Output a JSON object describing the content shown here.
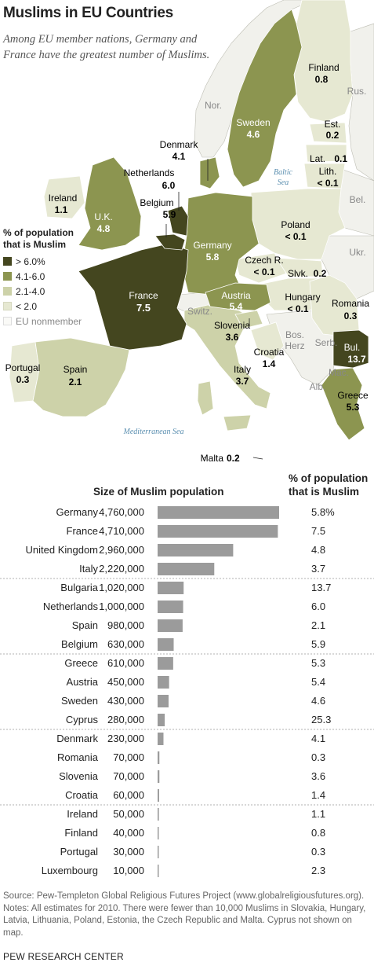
{
  "title": "Muslims in EU Countries",
  "subtitle": "Among EU member nations, Germany and France have the greatest number of Muslims.",
  "colors": {
    "dark": "#44461f",
    "medium": "#8c9550",
    "light": "#cdd2a9",
    "pale": "#e6e8d2",
    "nonmember": "#f3f3ee",
    "bar": "#9b9b9b"
  },
  "legend": {
    "title_line1": "% of population",
    "title_line2": "that is Muslim",
    "items": [
      "> 6.0%",
      "4.1-6.0",
      "2.1-4.0",
      "< 2.0",
      "EU nonmember"
    ]
  },
  "map_labels": [
    {
      "name": "Finland",
      "value": "0.8"
    },
    {
      "name": "Sweden",
      "value": "4.6"
    },
    {
      "name": "Est.",
      "value": "0.2"
    },
    {
      "name": "Lat.",
      "value": "0.1"
    },
    {
      "name": "Lith.",
      "value": "< 0.1"
    },
    {
      "name": "Denmark",
      "value": "4.1"
    },
    {
      "name": "Netherlands",
      "value": "6.0"
    },
    {
      "name": "Belgium",
      "value": "5.9"
    },
    {
      "name": "Ireland",
      "value": "1.1"
    },
    {
      "name": "U.K.",
      "value": "4.8"
    },
    {
      "name": "Germany",
      "value": "5.8"
    },
    {
      "name": "Poland",
      "value": "< 0.1"
    },
    {
      "name": "Czech R.",
      "value": "< 0.1"
    },
    {
      "name": "Slvk.",
      "value": "0.2"
    },
    {
      "name": "France",
      "value": "7.5"
    },
    {
      "name": "Austria",
      "value": "5.4"
    },
    {
      "name": "Hungary",
      "value": "< 0.1"
    },
    {
      "name": "Romania",
      "value": "0.3"
    },
    {
      "name": "Slovenia",
      "value": "3.6"
    },
    {
      "name": "Croatia",
      "value": "1.4"
    },
    {
      "name": "Bul.",
      "value": "13.7"
    },
    {
      "name": "Portugal",
      "value": "0.3"
    },
    {
      "name": "Spain",
      "value": "2.1"
    },
    {
      "name": "Italy",
      "value": "3.7"
    },
    {
      "name": "Greece",
      "value": "5.3"
    },
    {
      "name": "Malta",
      "value": "0.2"
    }
  ],
  "other_labels": {
    "nor": "Nor.",
    "rus": "Rus.",
    "bel": "Bel.",
    "ukr": "Ukr.",
    "switz": "Switz.",
    "bos": "Bos.",
    "herz": "Herz",
    "serb": "Serb.",
    "mac": "Mac.",
    "alb": "Alb.",
    "baltic1": "Baltic",
    "baltic2": "Sea",
    "med": "Mediterranean Sea"
  },
  "table_headers": {
    "size": "Size of Muslim population",
    "pct_line1": "% of population",
    "pct_line2": "that is Muslim"
  },
  "chart_data": {
    "type": "bar",
    "orientation": "horizontal",
    "categories": [
      "Germany",
      "France",
      "United Kingdom",
      "Italy",
      "Bulgaria",
      "Netherlands",
      "Spain",
      "Belgium",
      "Greece",
      "Austria",
      "Sweden",
      "Cyprus",
      "Denmark",
      "Romania",
      "Slovenia",
      "Croatia",
      "Ireland",
      "Finland",
      "Portugal",
      "Luxembourg"
    ],
    "values": [
      4760000,
      4710000,
      2960000,
      2220000,
      1020000,
      1000000,
      980000,
      630000,
      610000,
      450000,
      430000,
      280000,
      230000,
      70000,
      70000,
      60000,
      50000,
      40000,
      30000,
      10000
    ],
    "value_labels": [
      "4,760,000",
      "4,710,000",
      "2,960,000",
      "2,220,000",
      "1,020,000",
      "1,000,000",
      "980,000",
      "630,000",
      "610,000",
      "450,000",
      "430,000",
      "280,000",
      "230,000",
      "70,000",
      "70,000",
      "60,000",
      "50,000",
      "40,000",
      "30,000",
      "10,000"
    ],
    "percent_labels": [
      "5.8%",
      "7.5",
      "4.8",
      "3.7",
      "13.7",
      "6.0",
      "2.1",
      "5.9",
      "5.3",
      "5.4",
      "4.6",
      "25.3",
      "4.1",
      "0.3",
      "3.6",
      "1.4",
      "1.1",
      "0.8",
      "0.3",
      "2.3"
    ],
    "percent_values": [
      5.8,
      7.5,
      4.8,
      3.7,
      13.7,
      6.0,
      2.1,
      5.9,
      5.3,
      5.4,
      4.6,
      25.3,
      4.1,
      0.3,
      3.6,
      1.4,
      1.1,
      0.8,
      0.3,
      2.3
    ],
    "xlim": [
      0,
      4760000
    ],
    "group_breaks_after": [
      3,
      7,
      11,
      15
    ]
  },
  "note": "Source: Pew-Templeton Global Religious Futures Project (www.globalreligiousfutures.org). Notes: All estimates for 2010. There were fewer than 10,000 Muslims in Slovakia, Hungary, Latvia, Lithuania, Poland, Estonia, the Czech Republic and Malta. Cyprus not shown on map.",
  "footer": "PEW RESEARCH CENTER"
}
